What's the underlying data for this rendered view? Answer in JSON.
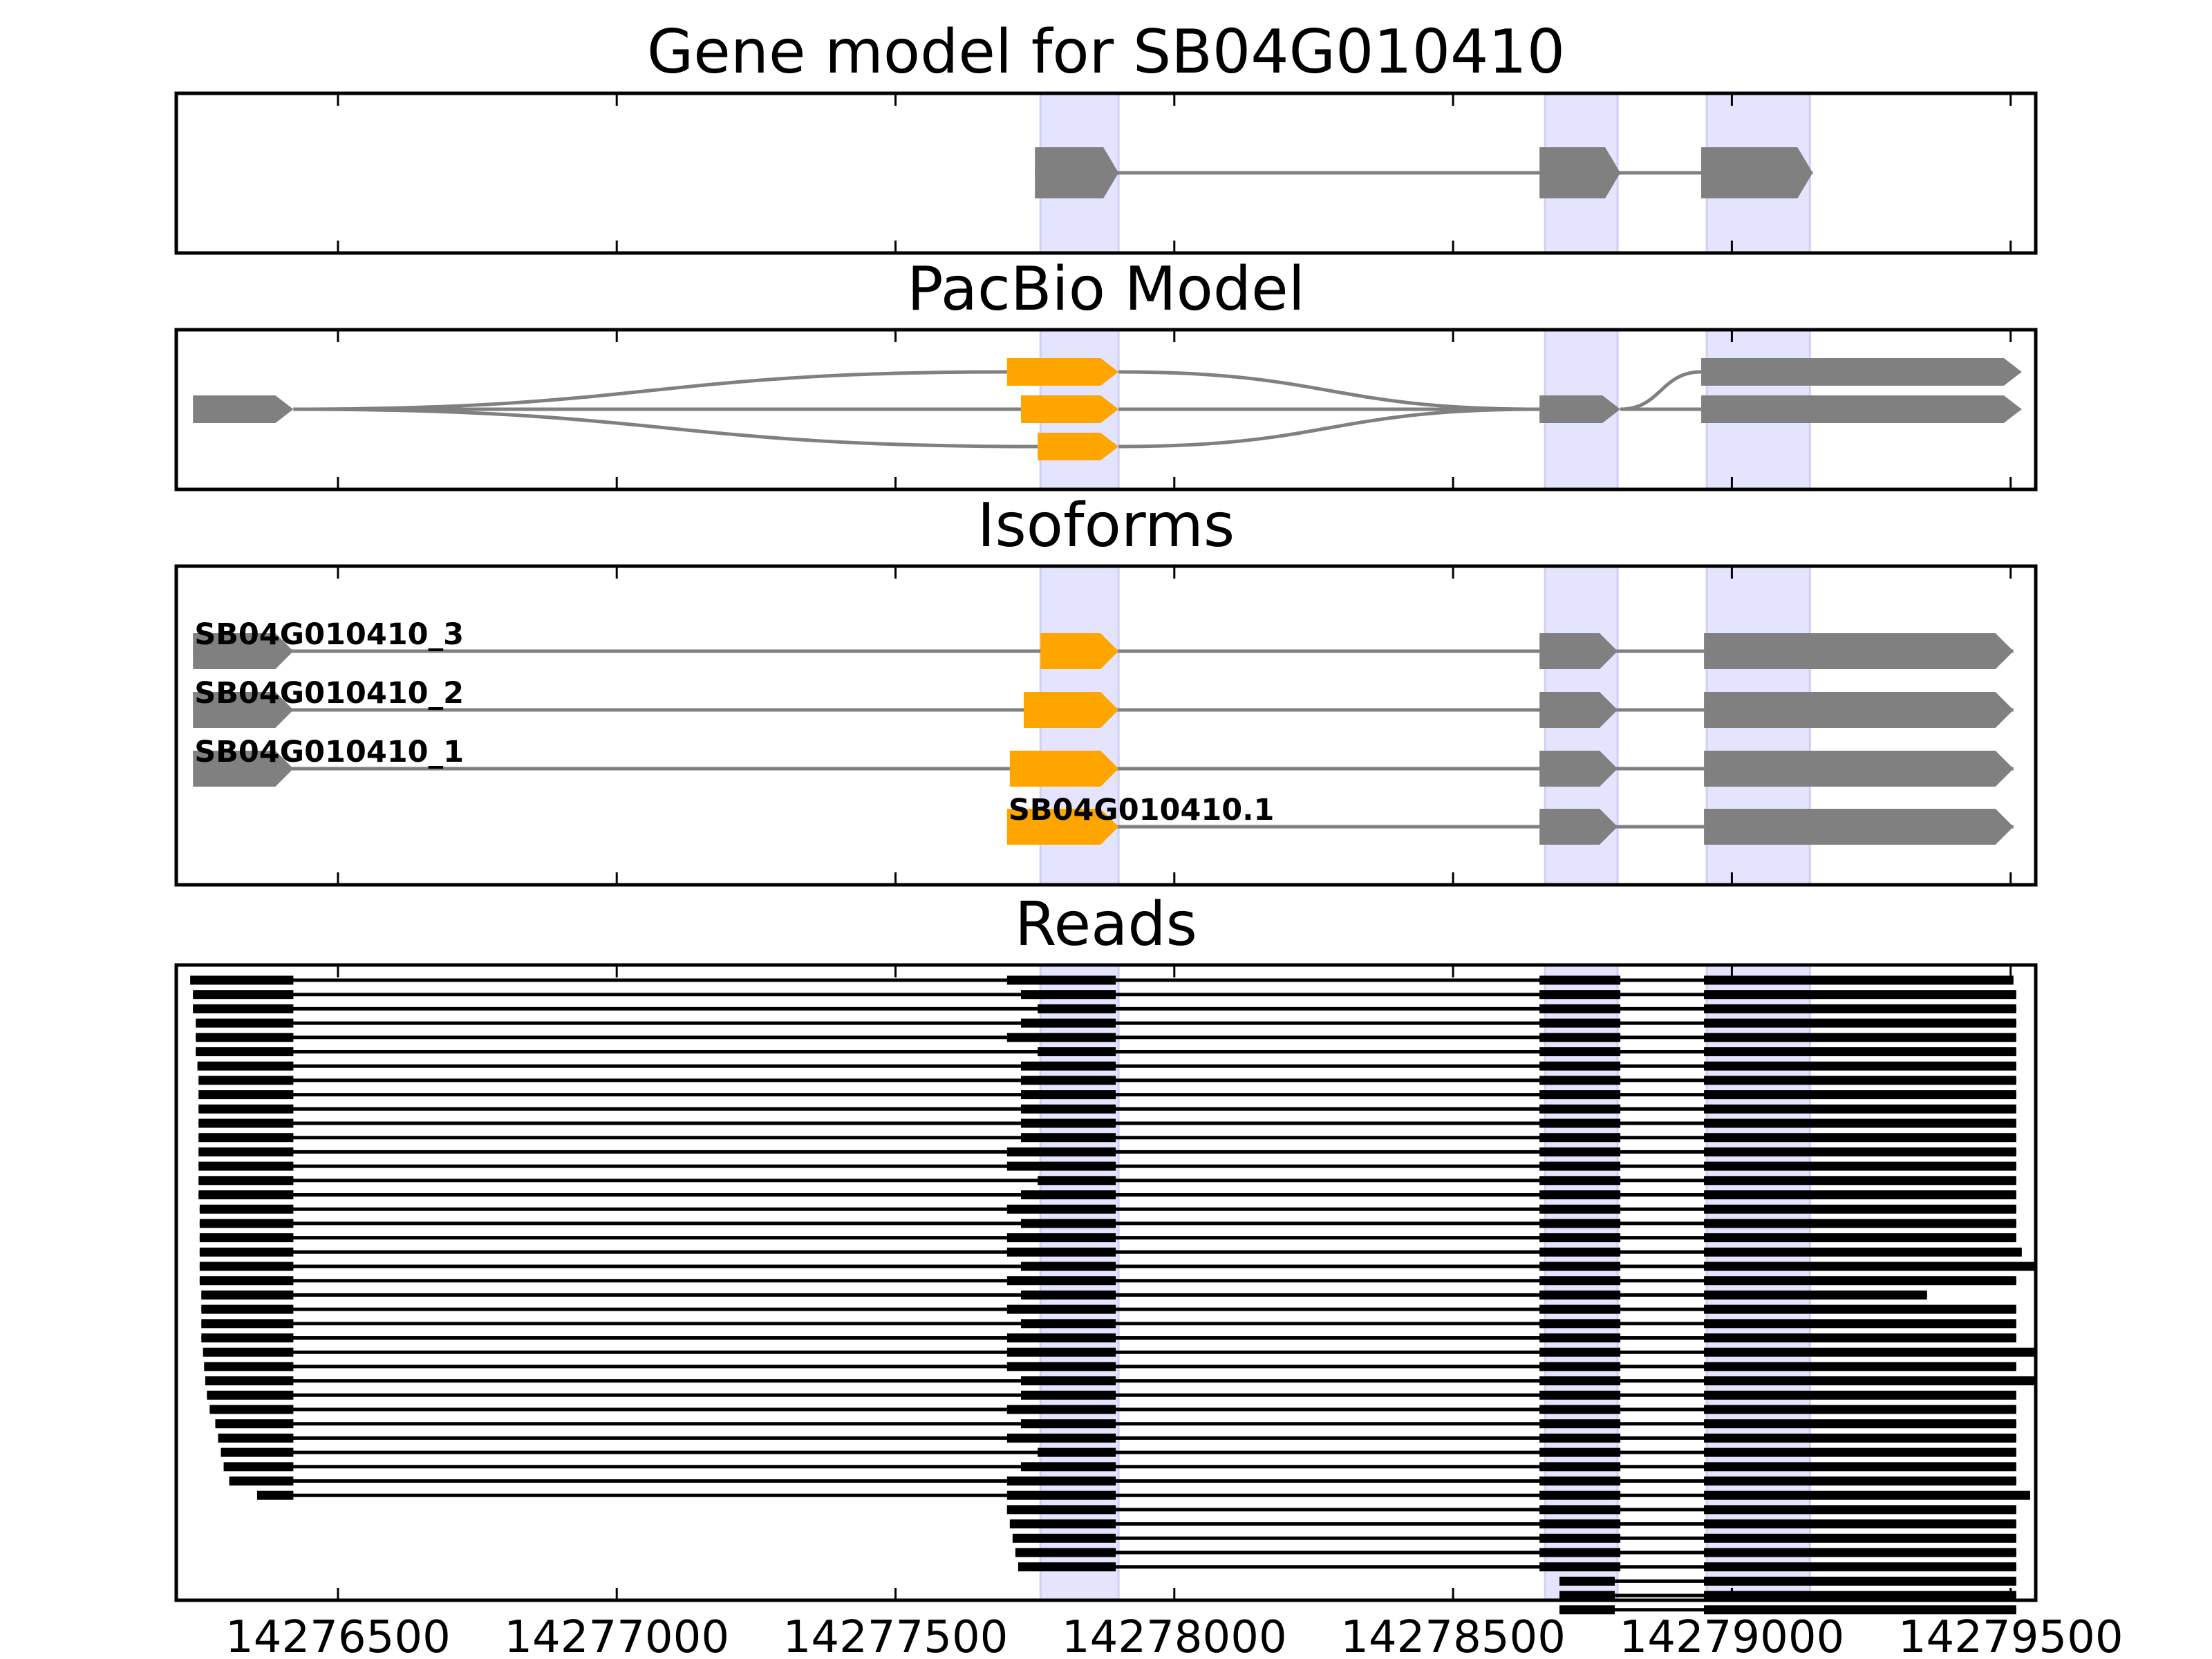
{
  "chart_data": {
    "type": "gene-structure",
    "colors": {
      "exon": "#808080",
      "highlight_exon": "#FFA500",
      "intron": "#808080",
      "shade": "#E4E4FF",
      "shade_edge": "#CFD0F4",
      "read": "#000000",
      "axis": "#000000"
    },
    "x_axis": {
      "min": 14276210,
      "max": 14279545,
      "ticks": [
        14276500,
        14277000,
        14277500,
        14278000,
        14278500,
        14279000,
        14279500
      ],
      "tick_labels": [
        "14276500",
        "14277000",
        "14277500",
        "14278000",
        "14278500",
        "14279000",
        "14279500"
      ]
    },
    "shaded_regions": [
      [
        14277760,
        14277900
      ],
      [
        14278665,
        14278795
      ],
      [
        14278955,
        14279140
      ]
    ],
    "panels": [
      {
        "key": "gene_model",
        "title": "Gene model for SB04G010410",
        "rows": [
          {
            "exons": [
              [
                14277750,
                14277900
              ],
              [
                14278655,
                14278800
              ],
              [
                14278945,
                14279145
              ]
            ],
            "orange": [],
            "label": ""
          }
        ]
      },
      {
        "key": "pacbio",
        "title": "PacBio Model",
        "rows": [
          {
            "exons": [
              [
                14276240,
                14276420
              ],
              [
                14277700,
                14277900
              ],
              [
                14278655,
                14278800
              ],
              [
                14278945,
                14279520
              ]
            ],
            "orange": [
              1
            ],
            "label": ""
          },
          {
            "exons": [
              [
                14276240,
                14276420
              ],
              [
                14277725,
                14277900
              ],
              [
                14278655,
                14278800
              ],
              [
                14278945,
                14279520
              ]
            ],
            "orange": [
              1
            ],
            "label": ""
          },
          {
            "exons": [
              [
                14276240,
                14276420
              ],
              [
                14277755,
                14277900
              ],
              [
                14278655,
                14278800
              ],
              [
                14278945,
                14279520
              ]
            ],
            "orange": [
              1
            ],
            "label": ""
          }
        ]
      },
      {
        "key": "isoforms",
        "title": "Isoforms",
        "rows": [
          {
            "exons": [
              [
                14276240,
                14276420
              ],
              [
                14277760,
                14277900
              ],
              [
                14278655,
                14278795
              ],
              [
                14278950,
                14279505
              ]
            ],
            "orange": [
              1
            ],
            "label": "SB04G010410_3",
            "label_x": 14276240
          },
          {
            "exons": [
              [
                14276240,
                14276420
              ],
              [
                14277730,
                14277900
              ],
              [
                14278655,
                14278795
              ],
              [
                14278950,
                14279505
              ]
            ],
            "orange": [
              1
            ],
            "label": "SB04G010410_2",
            "label_x": 14276240
          },
          {
            "exons": [
              [
                14276240,
                14276420
              ],
              [
                14277705,
                14277900
              ],
              [
                14278655,
                14278795
              ],
              [
                14278950,
                14279505
              ]
            ],
            "orange": [
              1
            ],
            "label": "SB04G010410_1",
            "label_x": 14276240
          },
          {
            "exons": [
              [
                14277700,
                14277900
              ],
              [
                14278655,
                14278795
              ],
              [
                14278950,
                14279505
              ]
            ],
            "orange": [
              0
            ],
            "label": "SB04G010410.1",
            "label_x": 14277700
          }
        ]
      },
      {
        "key": "reads",
        "title": "Reads",
        "read_count": 45,
        "read_starts": [
          14276235,
          14276240,
          14276240,
          14276245,
          14276245,
          14276245,
          14276248,
          14276250,
          14276250,
          14276250,
          14276250,
          14276250,
          14276250,
          14276250,
          14276250,
          14276250,
          14276252,
          14276252,
          14276252,
          14276252,
          14276252,
          14276252,
          14276255,
          14276255,
          14276255,
          14276255,
          14276258,
          14276260,
          14276262,
          14276265,
          14276270,
          14276280,
          14276285,
          14276290,
          14276295,
          14276305,
          14276355,
          null,
          null,
          null,
          null,
          null,
          null,
          null,
          null
        ],
        "exon2_starts": [
          14277700,
          14277725,
          14277755,
          14277725,
          14277700,
          14277755,
          14277725,
          14277725,
          14277725,
          14277725,
          14277725,
          14277725,
          14277700,
          14277700,
          14277755,
          14277725,
          14277700,
          14277725,
          14277700,
          14277700,
          14277725,
          14277700,
          14277725,
          14277700,
          14277725,
          14277700,
          14277700,
          14277700,
          14277725,
          14277725,
          14277700,
          14277725,
          14277700,
          14277755,
          14277725,
          14277700,
          14277700,
          14277700,
          14277705,
          14277710,
          14277715,
          14277720,
          14278790,
          14278790,
          14278790
        ],
        "read_ends": [
          14279505,
          14279510,
          14279510,
          14279510,
          14279510,
          14279510,
          14279510,
          14279510,
          14279510,
          14279510,
          14279510,
          14279510,
          14279510,
          14279510,
          14279510,
          14279510,
          14279510,
          14279510,
          14279510,
          14279520,
          14279545,
          14279510,
          14279350,
          14279510,
          14279510,
          14279510,
          14279545,
          14279510,
          14279545,
          14279510,
          14279510,
          14279510,
          14279510,
          14279510,
          14279510,
          14279510,
          14279535,
          14279510,
          14279510,
          14279510,
          14279510,
          14279510,
          14279510,
          14279510,
          14279510
        ]
      }
    ]
  }
}
